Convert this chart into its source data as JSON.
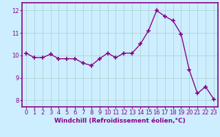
{
  "x": [
    0,
    1,
    2,
    3,
    4,
    5,
    6,
    7,
    8,
    9,
    10,
    11,
    12,
    13,
    14,
    15,
    16,
    17,
    18,
    19,
    20,
    21,
    22,
    23
  ],
  "y": [
    10.1,
    9.9,
    9.9,
    10.05,
    9.85,
    9.85,
    9.85,
    9.65,
    9.55,
    9.85,
    10.1,
    9.9,
    10.1,
    10.1,
    10.5,
    11.1,
    12.0,
    11.75,
    11.55,
    10.95,
    9.35,
    8.3,
    8.6,
    8.05
  ],
  "line_color": "#880088",
  "marker": "+",
  "marker_size": 4,
  "marker_lw": 1.2,
  "bg_color": "#cceeff",
  "grid_color": "#aacccc",
  "xlabel": "Windchill (Refroidissement éolien,°C)",
  "xlabel_color": "#880088",
  "xtick_color": "#880088",
  "ytick_color": "#880088",
  "ylim": [
    7.7,
    12.35
  ],
  "xlim": [
    -0.5,
    23.5
  ],
  "yticks": [
    8,
    9,
    10,
    11,
    12
  ],
  "xticks": [
    0,
    1,
    2,
    3,
    4,
    5,
    6,
    7,
    8,
    9,
    10,
    11,
    12,
    13,
    14,
    15,
    16,
    17,
    18,
    19,
    20,
    21,
    22,
    23
  ],
  "spine_color": "#880088",
  "xlabel_fontsize": 6.5,
  "tick_fontsize": 6.0,
  "linewidth": 1.0
}
